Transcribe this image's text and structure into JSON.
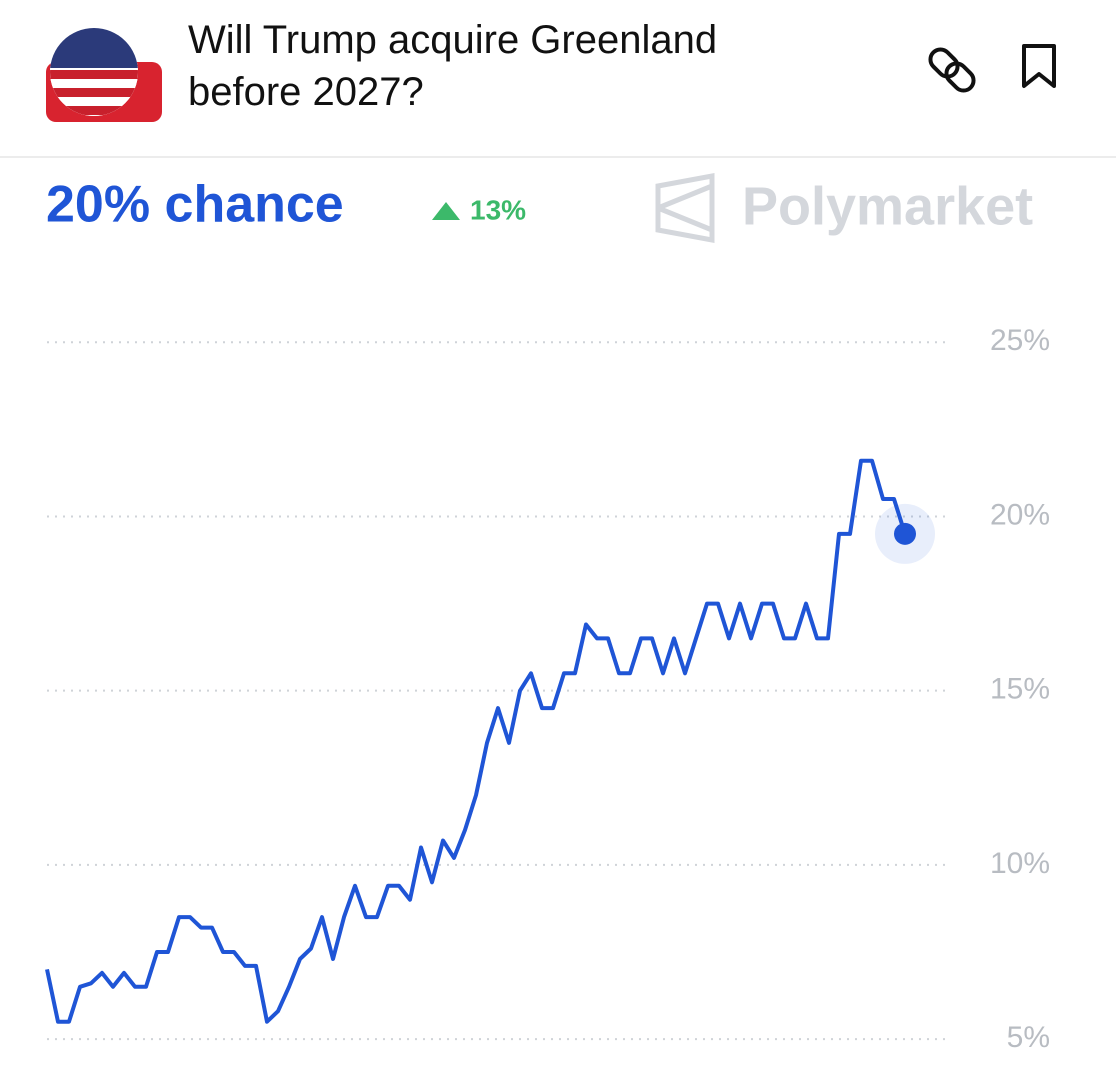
{
  "chart_data": {
    "type": "line",
    "title": "Will Trump acquire Greenland before 2027?",
    "headline": "20% chance",
    "change": "13%",
    "brand": "Polymarket",
    "color": "#1f55d6",
    "values": [
      7.0,
      5.5,
      5.5,
      6.5,
      6.6,
      6.9,
      6.5,
      6.9,
      6.5,
      6.5,
      7.5,
      7.5,
      8.5,
      8.5,
      8.2,
      8.2,
      7.5,
      7.5,
      7.1,
      7.1,
      5.5,
      5.8,
      6.5,
      7.3,
      7.6,
      8.5,
      7.3,
      8.5,
      9.4,
      8.5,
      8.5,
      9.4,
      9.4,
      9.0,
      10.5,
      9.5,
      10.7,
      10.2,
      11,
      12,
      13.5,
      14.5,
      13.5,
      15,
      15.5,
      14.5,
      14.5,
      15.5,
      15.5,
      16.9,
      16.5,
      16.5,
      15.5,
      15.5,
      16.5,
      16.5,
      15.5,
      16.5,
      15.5,
      16.5,
      17.5,
      17.5,
      16.5,
      17.5,
      16.5,
      17.5,
      17.5,
      16.5,
      16.5,
      17.5,
      16.5,
      16.5,
      19.5,
      19.5,
      21.6,
      21.6,
      20.5,
      20.5,
      19.5
    ],
    "ylim": [
      4.4,
      26.5
    ],
    "yticks": [
      {
        "value": 5,
        "label": "5%"
      },
      {
        "value": 10,
        "label": "10%"
      },
      {
        "value": 15,
        "label": "15%"
      },
      {
        "value": 20,
        "label": "20%"
      },
      {
        "value": 25,
        "label": "25%"
      }
    ],
    "grid": true
  }
}
